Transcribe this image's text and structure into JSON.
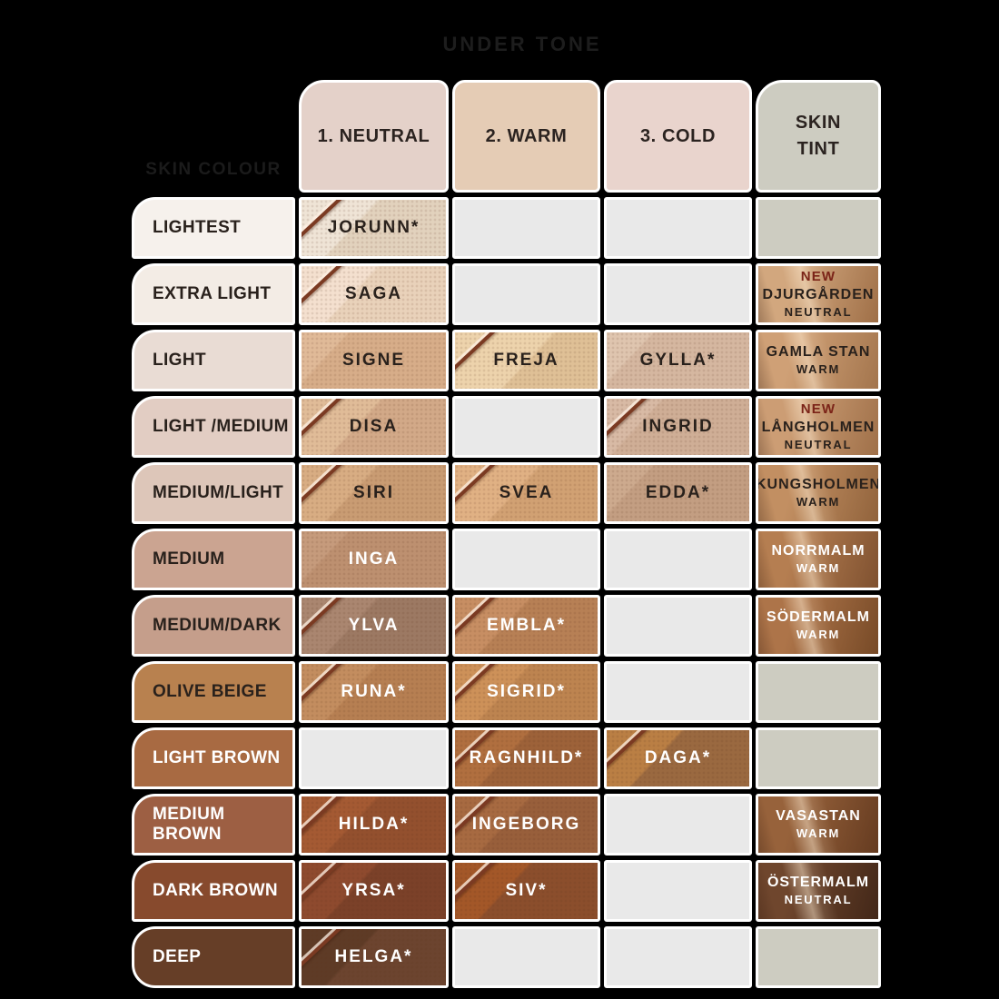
{
  "title": "UNDER TONE",
  "row_axis_label": "SKIN COLOUR",
  "palette": {
    "background": "#000000",
    "empty_undertone": "#e9e9e9",
    "empty_tint": "#cdccc1",
    "new_badge": "#7b2418",
    "dark_text": "#29211c",
    "light_text": "#ffffff"
  },
  "header": {
    "columns": [
      {
        "id": "neutral",
        "label": "1. NEUTRAL",
        "bg": "#e4d1c9"
      },
      {
        "id": "warm",
        "label": "2. WARM",
        "bg": "#e5ccb5"
      },
      {
        "id": "cold",
        "label": "3. COLD",
        "bg": "#e9d4cd"
      },
      {
        "id": "skintint",
        "label": "SKIN TINT",
        "bg": "#cdccc1",
        "stack": true
      }
    ]
  },
  "rows": [
    {
      "label": "LIGHTEST",
      "label_bg": "#f6f1ec",
      "label_text": "dark",
      "cells": [
        {
          "type": "swatch",
          "name": "JORUNN*",
          "smooth": "#efe4d6",
          "grain": "#e2d2bd",
          "text": "dark",
          "edge": true
        },
        {
          "type": "empty"
        },
        {
          "type": "empty"
        },
        {
          "type": "tint-empty"
        }
      ]
    },
    {
      "label": "EXTRA LIGHT",
      "label_bg": "#f3ece5",
      "label_text": "dark",
      "cells": [
        {
          "type": "swatch",
          "name": "SAGA",
          "smooth": "#f4e0cf",
          "grain": "#e9d2ba",
          "text": "dark",
          "edge": true
        },
        {
          "type": "empty"
        },
        {
          "type": "empty"
        },
        {
          "type": "tint",
          "name": "DJURGÅRDEN",
          "sub": "NEUTRAL",
          "badge": "NEW",
          "c1": "#d2a77e",
          "c2": "#9f6f47",
          "text": "dark"
        }
      ]
    },
    {
      "label": "LIGHT",
      "label_bg": "#e9dcd4",
      "label_text": "dark",
      "cells": [
        {
          "type": "swatch",
          "name": "SIGNE",
          "smooth": "#e0ba98",
          "grain": "#d7ad89",
          "text": "dark",
          "edge": false,
          "split": 25
        },
        {
          "type": "swatch",
          "name": "FREJA",
          "smooth": "#edd3ac",
          "grain": "#dfc096",
          "text": "dark",
          "edge": true,
          "split": 52
        },
        {
          "type": "swatch",
          "name": "GYLLA*",
          "smooth": "#dfc5af",
          "grain": "#d5b7a0",
          "text": "dark",
          "edge": false,
          "split": 25
        },
        {
          "type": "tint",
          "name": "GAMLA STAN",
          "sub": "WARM",
          "c1": "#cfa076",
          "c2": "#a3754d",
          "text": "dark"
        }
      ]
    },
    {
      "label": "LIGHT /MEDIUM",
      "label_bg": "#e2cdc3",
      "label_text": "dark",
      "cells": [
        {
          "type": "swatch",
          "name": "DISA",
          "smooth": "#e0bc98",
          "grain": "#d2a988",
          "text": "dark",
          "edge": true,
          "split": 42
        },
        {
          "type": "empty"
        },
        {
          "type": "swatch",
          "name": "INGRID",
          "smooth": "#d8baa5",
          "grain": "#cfae96",
          "text": "dark",
          "edge": true,
          "split": 30
        },
        {
          "type": "tint",
          "name": "LÅNGHOLMEN",
          "sub": "NEUTRAL",
          "badge": "NEW",
          "c1": "#cc9d74",
          "c2": "#9f7049",
          "text": "dark"
        }
      ]
    },
    {
      "label": "MEDIUM/LIGHT",
      "label_bg": "#ddc6b9",
      "label_text": "dark",
      "cells": [
        {
          "type": "swatch",
          "name": "SIRI",
          "smooth": "#d8ad83",
          "grain": "#c99c73",
          "text": "dark",
          "edge": true
        },
        {
          "type": "swatch",
          "name": "SVEA",
          "smooth": "#e0b184",
          "grain": "#d1a173",
          "text": "dark",
          "edge": true,
          "split": 45
        },
        {
          "type": "swatch",
          "name": "EDDA*",
          "smooth": "#cdaa8e",
          "grain": "#c39e82",
          "text": "dark",
          "edge": false,
          "split": 25
        },
        {
          "type": "tint",
          "name": "KUNGSHOLMEN",
          "sub": "WARM",
          "c1": "#c28f62",
          "c2": "#91633c",
          "text": "dark"
        }
      ]
    },
    {
      "label": "MEDIUM",
      "label_bg": "#cba491",
      "label_text": "dark",
      "cells": [
        {
          "type": "swatch",
          "name": "INGA",
          "smooth": "#c69b7c",
          "grain": "#bd9070",
          "text": "white",
          "edge": false,
          "split": 25
        },
        {
          "type": "empty"
        },
        {
          "type": "empty"
        },
        {
          "type": "tint",
          "name": "NORRMALM",
          "sub": "WARM",
          "c1": "#b57e51",
          "c2": "#7f5130",
          "text": "white"
        }
      ]
    },
    {
      "label": "MEDIUM/DARK",
      "label_bg": "#c59e8b",
      "label_text": "dark",
      "cells": [
        {
          "type": "swatch",
          "name": "YLVA",
          "smooth": "#aa8670",
          "grain": "#9c7963",
          "text": "white",
          "edge": true
        },
        {
          "type": "swatch",
          "name": "EMBLA*",
          "smooth": "#c78e63",
          "grain": "#b78055",
          "text": "white",
          "edge": true
        },
        {
          "type": "empty"
        },
        {
          "type": "tint",
          "name": "SÖDERMALM",
          "sub": "WARM",
          "c1": "#ad7449",
          "c2": "#774a27",
          "text": "white"
        }
      ]
    },
    {
      "label": "OLIVE BEIGE",
      "label_bg": "#b8814f",
      "label_text": "dark",
      "cells": [
        {
          "type": "swatch",
          "name": "RUNA*",
          "smooth": "#c38d5f",
          "grain": "#b67f52",
          "text": "white",
          "edge": true
        },
        {
          "type": "swatch",
          "name": "SIGRID*",
          "smooth": "#cd9159",
          "grain": "#bd8450",
          "text": "white",
          "edge": true
        },
        {
          "type": "empty"
        },
        {
          "type": "tint-empty"
        }
      ]
    },
    {
      "label": "LIGHT BROWN",
      "label_bg": "#a86a42",
      "label_text": "white",
      "cells": [
        {
          "type": "empty"
        },
        {
          "type": "swatch",
          "name": "RAGNHILD*",
          "smooth": "#b06f3f",
          "grain": "#9d6239",
          "text": "white",
          "edge": true
        },
        {
          "type": "swatch",
          "name": "DAGA*",
          "smooth": "#ba7f44",
          "grain": "#9a6940",
          "text": "white",
          "edge": true
        },
        {
          "type": "tint-empty"
        }
      ]
    },
    {
      "label": "MEDIUM BROWN",
      "label_bg": "#9d5f43",
      "label_text": "white",
      "cells": [
        {
          "type": "swatch",
          "name": "HILDA*",
          "smooth": "#a45a33",
          "grain": "#93502e",
          "text": "white",
          "edge": true
        },
        {
          "type": "swatch",
          "name": "INGEBORG",
          "smooth": "#a76a41",
          "grain": "#985f3b",
          "text": "white",
          "edge": true
        },
        {
          "type": "empty"
        },
        {
          "type": "tint",
          "name": "VASASTAN",
          "sub": "WARM",
          "c1": "#97623b",
          "c2": "#653b20",
          "text": "white"
        }
      ]
    },
    {
      "label": "DARK BROWN",
      "label_bg": "#874a2d",
      "label_text": "white",
      "cells": [
        {
          "type": "swatch",
          "name": "YRSA*",
          "smooth": "#8e4a2e",
          "grain": "#7b4129",
          "text": "white",
          "edge": true
        },
        {
          "type": "swatch",
          "name": "SIV*",
          "smooth": "#a35728",
          "grain": "#8b4e2c",
          "text": "white",
          "edge": true
        },
        {
          "type": "empty"
        },
        {
          "type": "tint",
          "name": "ÖSTERMALM",
          "sub": "NEUTRAL",
          "c1": "#6f462d",
          "c2": "#422718",
          "text": "white"
        }
      ]
    },
    {
      "label": "DEEP",
      "label_bg": "#663e27",
      "label_text": "white",
      "cells": [
        {
          "type": "swatch",
          "name": "HELGA*",
          "smooth": "#5e3b26",
          "grain": "#6c442f",
          "text": "white",
          "edge": true
        },
        {
          "type": "empty"
        },
        {
          "type": "empty"
        },
        {
          "type": "tint-empty"
        }
      ]
    }
  ],
  "chart_data": {
    "type": "table",
    "title": "UNDER TONE",
    "row_axis": "SKIN COLOUR",
    "columns": [
      "1. NEUTRAL",
      "2. WARM",
      "3. COLD",
      "SKIN TINT"
    ],
    "rows": [
      {
        "skin_colour": "LIGHTEST",
        "neutral": "JORUNN*",
        "warm": "",
        "cold": "",
        "skin_tint": ""
      },
      {
        "skin_colour": "EXTRA LIGHT",
        "neutral": "SAGA",
        "warm": "",
        "cold": "",
        "skin_tint": "NEW DJURGÅRDEN NEUTRAL"
      },
      {
        "skin_colour": "LIGHT",
        "neutral": "SIGNE",
        "warm": "FREJA",
        "cold": "GYLLA*",
        "skin_tint": "GAMLA STAN WARM"
      },
      {
        "skin_colour": "LIGHT /MEDIUM",
        "neutral": "DISA",
        "warm": "",
        "cold": "INGRID",
        "skin_tint": "NEW LÅNGHOLMEN NEUTRAL"
      },
      {
        "skin_colour": "MEDIUM/LIGHT",
        "neutral": "SIRI",
        "warm": "SVEA",
        "cold": "EDDA*",
        "skin_tint": "KUNGSHOLMEN WARM"
      },
      {
        "skin_colour": "MEDIUM",
        "neutral": "INGA",
        "warm": "",
        "cold": "",
        "skin_tint": "NORRMALM WARM"
      },
      {
        "skin_colour": "MEDIUM/DARK",
        "neutral": "YLVA",
        "warm": "EMBLA*",
        "cold": "",
        "skin_tint": "SÖDERMALM WARM"
      },
      {
        "skin_colour": "OLIVE BEIGE",
        "neutral": "RUNA*",
        "warm": "SIGRID*",
        "cold": "",
        "skin_tint": ""
      },
      {
        "skin_colour": "LIGHT BROWN",
        "neutral": "",
        "warm": "RAGNHILD*",
        "cold": "DAGA*",
        "skin_tint": ""
      },
      {
        "skin_colour": "MEDIUM BROWN",
        "neutral": "HILDA*",
        "warm": "INGEBORG",
        "cold": "",
        "skin_tint": "VASASTAN WARM"
      },
      {
        "skin_colour": "DARK BROWN",
        "neutral": "YRSA*",
        "warm": "SIV*",
        "cold": "",
        "skin_tint": "ÖSTERMALM NEUTRAL"
      },
      {
        "skin_colour": "DEEP",
        "neutral": "HELGA*",
        "warm": "",
        "cold": "",
        "skin_tint": ""
      }
    ]
  }
}
